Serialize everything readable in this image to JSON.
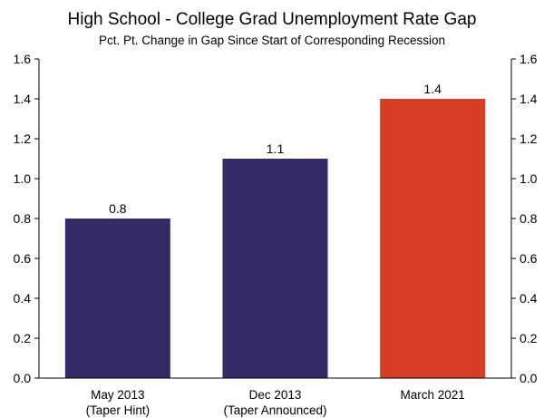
{
  "chart_data": {
    "type": "bar",
    "title": "High School - College Grad Unemployment Rate Gap",
    "subtitle": "Pct. Pt. Change in Gap Since Start of Corresponding Recession",
    "categories": [
      [
        "May 2013",
        "(Taper Hint)"
      ],
      [
        "Dec 2013",
        "(Taper Announced)"
      ],
      [
        "March 2021"
      ]
    ],
    "values": [
      0.8,
      1.1,
      1.4
    ],
    "data_labels": [
      "0.8",
      "1.1",
      "1.4"
    ],
    "colors": [
      "#352a66",
      "#352a66",
      "#d63e26"
    ],
    "ylim": [
      0,
      1.6
    ],
    "y_ticks": [
      "0.0",
      "0.2",
      "0.4",
      "0.6",
      "0.8",
      "1.0",
      "1.2",
      "1.4",
      "1.6"
    ],
    "axes": "left and right",
    "grid": false,
    "legend": "none"
  }
}
